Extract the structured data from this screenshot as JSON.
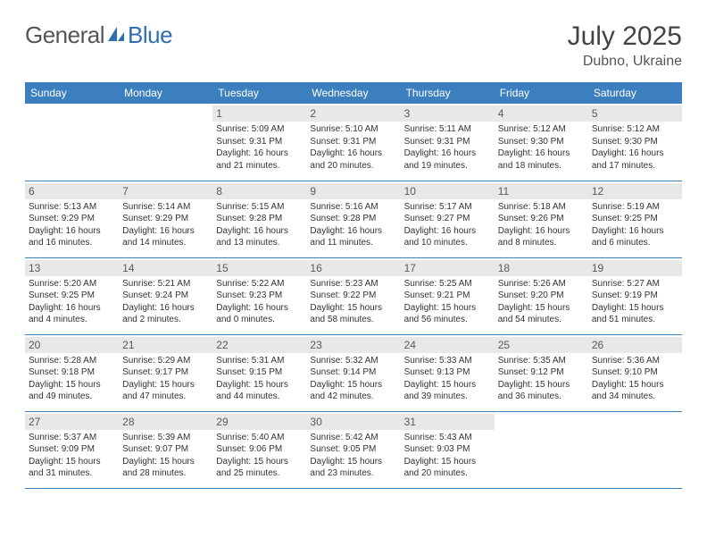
{
  "brand": {
    "part1": "General",
    "part2": "Blue"
  },
  "title": "July 2025",
  "location": "Dubno, Ukraine",
  "colors": {
    "header_bg": "#3b7fbf",
    "header_text": "#ffffff",
    "daynum_bg": "#e8e8e8",
    "week_border": "#3b7fbf",
    "logo_icon": "#2f6fb0"
  },
  "day_headers": [
    "Sunday",
    "Monday",
    "Tuesday",
    "Wednesday",
    "Thursday",
    "Friday",
    "Saturday"
  ],
  "weeks": [
    [
      null,
      null,
      {
        "n": "1",
        "sr": "5:09 AM",
        "ss": "9:31 PM",
        "dl": "16 hours and 21 minutes."
      },
      {
        "n": "2",
        "sr": "5:10 AM",
        "ss": "9:31 PM",
        "dl": "16 hours and 20 minutes."
      },
      {
        "n": "3",
        "sr": "5:11 AM",
        "ss": "9:31 PM",
        "dl": "16 hours and 19 minutes."
      },
      {
        "n": "4",
        "sr": "5:12 AM",
        "ss": "9:30 PM",
        "dl": "16 hours and 18 minutes."
      },
      {
        "n": "5",
        "sr": "5:12 AM",
        "ss": "9:30 PM",
        "dl": "16 hours and 17 minutes."
      }
    ],
    [
      {
        "n": "6",
        "sr": "5:13 AM",
        "ss": "9:29 PM",
        "dl": "16 hours and 16 minutes."
      },
      {
        "n": "7",
        "sr": "5:14 AM",
        "ss": "9:29 PM",
        "dl": "16 hours and 14 minutes."
      },
      {
        "n": "8",
        "sr": "5:15 AM",
        "ss": "9:28 PM",
        "dl": "16 hours and 13 minutes."
      },
      {
        "n": "9",
        "sr": "5:16 AM",
        "ss": "9:28 PM",
        "dl": "16 hours and 11 minutes."
      },
      {
        "n": "10",
        "sr": "5:17 AM",
        "ss": "9:27 PM",
        "dl": "16 hours and 10 minutes."
      },
      {
        "n": "11",
        "sr": "5:18 AM",
        "ss": "9:26 PM",
        "dl": "16 hours and 8 minutes."
      },
      {
        "n": "12",
        "sr": "5:19 AM",
        "ss": "9:25 PM",
        "dl": "16 hours and 6 minutes."
      }
    ],
    [
      {
        "n": "13",
        "sr": "5:20 AM",
        "ss": "9:25 PM",
        "dl": "16 hours and 4 minutes."
      },
      {
        "n": "14",
        "sr": "5:21 AM",
        "ss": "9:24 PM",
        "dl": "16 hours and 2 minutes."
      },
      {
        "n": "15",
        "sr": "5:22 AM",
        "ss": "9:23 PM",
        "dl": "16 hours and 0 minutes."
      },
      {
        "n": "16",
        "sr": "5:23 AM",
        "ss": "9:22 PM",
        "dl": "15 hours and 58 minutes."
      },
      {
        "n": "17",
        "sr": "5:25 AM",
        "ss": "9:21 PM",
        "dl": "15 hours and 56 minutes."
      },
      {
        "n": "18",
        "sr": "5:26 AM",
        "ss": "9:20 PM",
        "dl": "15 hours and 54 minutes."
      },
      {
        "n": "19",
        "sr": "5:27 AM",
        "ss": "9:19 PM",
        "dl": "15 hours and 51 minutes."
      }
    ],
    [
      {
        "n": "20",
        "sr": "5:28 AM",
        "ss": "9:18 PM",
        "dl": "15 hours and 49 minutes."
      },
      {
        "n": "21",
        "sr": "5:29 AM",
        "ss": "9:17 PM",
        "dl": "15 hours and 47 minutes."
      },
      {
        "n": "22",
        "sr": "5:31 AM",
        "ss": "9:15 PM",
        "dl": "15 hours and 44 minutes."
      },
      {
        "n": "23",
        "sr": "5:32 AM",
        "ss": "9:14 PM",
        "dl": "15 hours and 42 minutes."
      },
      {
        "n": "24",
        "sr": "5:33 AM",
        "ss": "9:13 PM",
        "dl": "15 hours and 39 minutes."
      },
      {
        "n": "25",
        "sr": "5:35 AM",
        "ss": "9:12 PM",
        "dl": "15 hours and 36 minutes."
      },
      {
        "n": "26",
        "sr": "5:36 AM",
        "ss": "9:10 PM",
        "dl": "15 hours and 34 minutes."
      }
    ],
    [
      {
        "n": "27",
        "sr": "5:37 AM",
        "ss": "9:09 PM",
        "dl": "15 hours and 31 minutes."
      },
      {
        "n": "28",
        "sr": "5:39 AM",
        "ss": "9:07 PM",
        "dl": "15 hours and 28 minutes."
      },
      {
        "n": "29",
        "sr": "5:40 AM",
        "ss": "9:06 PM",
        "dl": "15 hours and 25 minutes."
      },
      {
        "n": "30",
        "sr": "5:42 AM",
        "ss": "9:05 PM",
        "dl": "15 hours and 23 minutes."
      },
      {
        "n": "31",
        "sr": "5:43 AM",
        "ss": "9:03 PM",
        "dl": "15 hours and 20 minutes."
      },
      null,
      null
    ]
  ]
}
